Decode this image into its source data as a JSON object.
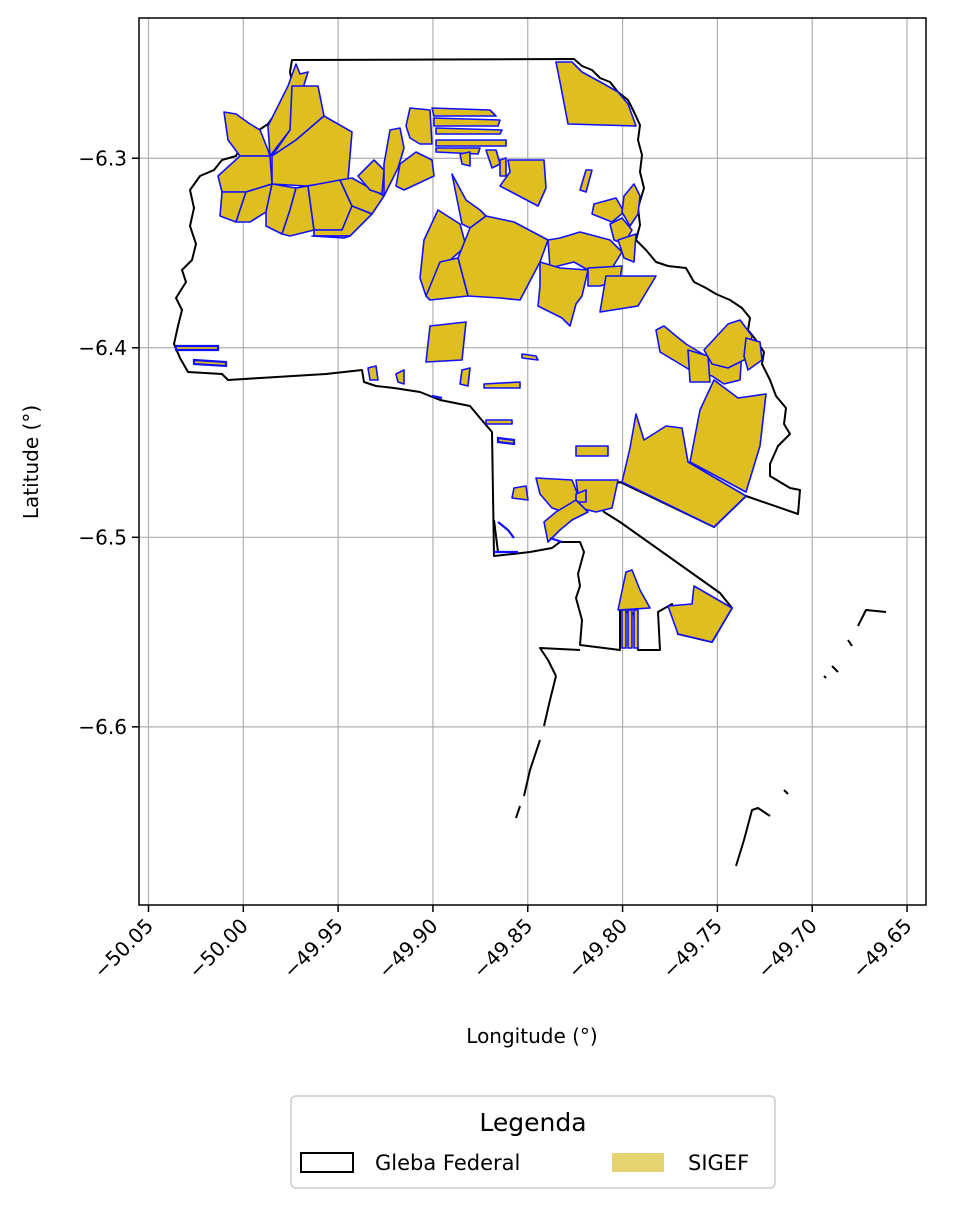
{
  "chart_data": {
    "type": "map",
    "xlabel": "Longitude (°)",
    "ylabel": "Latitude (°)",
    "xlim": [
      -50.055,
      -49.64
    ],
    "ylim": [
      -6.694,
      -6.226
    ],
    "xticks": [
      "−50.05",
      "−50.00",
      "−49.95",
      "−49.90",
      "−49.85",
      "−49.80",
      "−49.75",
      "−49.70",
      "−49.65"
    ],
    "xtick_values": [
      -50.05,
      -50.0,
      -49.95,
      -49.9,
      -49.85,
      -49.8,
      -49.75,
      -49.7,
      -49.65
    ],
    "yticks": [
      "−6.3",
      "−6.4",
      "−6.5",
      "−6.6"
    ],
    "ytick_values": [
      -6.3,
      -6.4,
      -6.5,
      -6.6
    ],
    "grid": true,
    "legend": {
      "title": "Legenda",
      "placement": "below",
      "entries": [
        {
          "label": "Gleba Federal",
          "style": "outline",
          "color": "#000000"
        },
        {
          "label": "SIGEF",
          "style": "fill",
          "color": "#e6d26e"
        }
      ]
    },
    "colors": {
      "gleba_edge": "#000000",
      "sigef_fill": "#dfbe1f",
      "sigef_edge": "#1010ff"
    }
  }
}
